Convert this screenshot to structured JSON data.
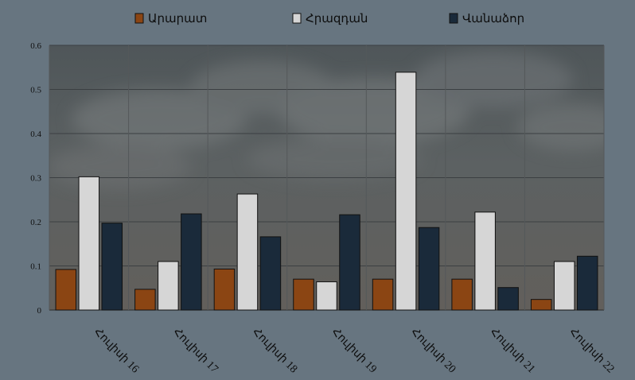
{
  "chart_data": {
    "type": "bar",
    "categories": [
      "Հուլիսի 16",
      "Հուլիսի 17",
      "Հուլիսի 18",
      "Հուլիսի 19",
      "Հուլիսի 20",
      "Հուլիսի 21",
      "Հուլիսի 22"
    ],
    "series": [
      {
        "name": "Արարատ",
        "color": "#8b4513",
        "values": [
          0.092,
          0.047,
          0.093,
          0.07,
          0.07,
          0.07,
          0.024
        ]
      },
      {
        "name": "Հրազդան",
        "color": "#d6d6d6",
        "values": [
          0.302,
          0.11,
          0.263,
          0.064,
          0.539,
          0.222,
          0.11
        ]
      },
      {
        "name": "Վանաձոր",
        "color": "#1a2a3a",
        "values": [
          0.197,
          0.218,
          0.166,
          0.216,
          0.187,
          0.051,
          0.122
        ]
      }
    ],
    "ylim": [
      0,
      0.6
    ],
    "yticks": [
      "0",
      "0.1",
      "0.2",
      "0.3",
      "0.4",
      "0.5",
      "0.6"
    ],
    "grid": true,
    "legend_position": "top",
    "background": "cloudy sky photo",
    "page_background": "#677580",
    "plot_background": "#5a5f60"
  }
}
